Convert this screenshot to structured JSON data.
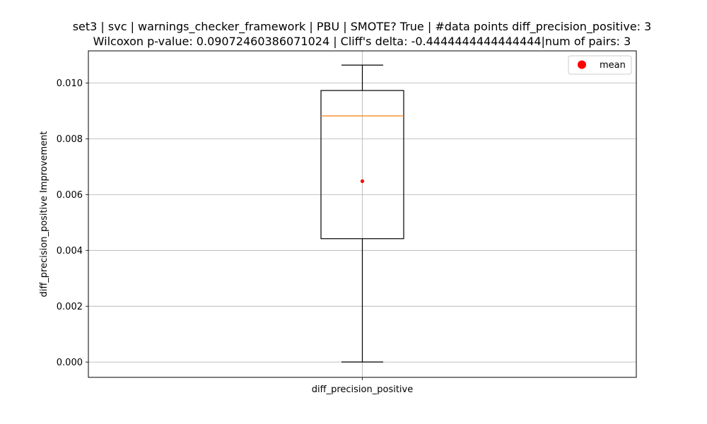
{
  "chart_data": {
    "type": "box",
    "title_line1": "set3 | svc | warnings_checker_framework | PBU | SMOTE? True | #data points diff_precision_positive: 3",
    "title_line2": "Wilcoxon p-value: 0.09072460386071024 | Cliff's delta: -0.4444444444444444|num of pairs: 3",
    "xlabel": "",
    "ylabel": "diff_precision_positive Improvement",
    "categories": [
      "diff_precision_positive"
    ],
    "ylim": [
      -0.00055,
      0.01115
    ],
    "yticks": [
      0.0,
      0.002,
      0.004,
      0.006,
      0.008,
      0.01
    ],
    "ytick_labels": [
      "0.000",
      "0.002",
      "0.004",
      "0.006",
      "0.008",
      "0.010"
    ],
    "grid": true,
    "legend": {
      "placement": "top-right",
      "entries": [
        {
          "label": "mean",
          "color": "#ff0000"
        }
      ]
    },
    "boxes": [
      {
        "category": "diff_precision_positive",
        "whisker_low": 0.0,
        "q1": 0.00442,
        "median": 0.00882,
        "q3": 0.00973,
        "whisker_high": 0.01064,
        "mean": 0.00648
      }
    ],
    "colors": {
      "box": "#000000",
      "median": "#ff7f0e",
      "mean": "#ff0000",
      "grid": "#b0b0b0"
    }
  }
}
